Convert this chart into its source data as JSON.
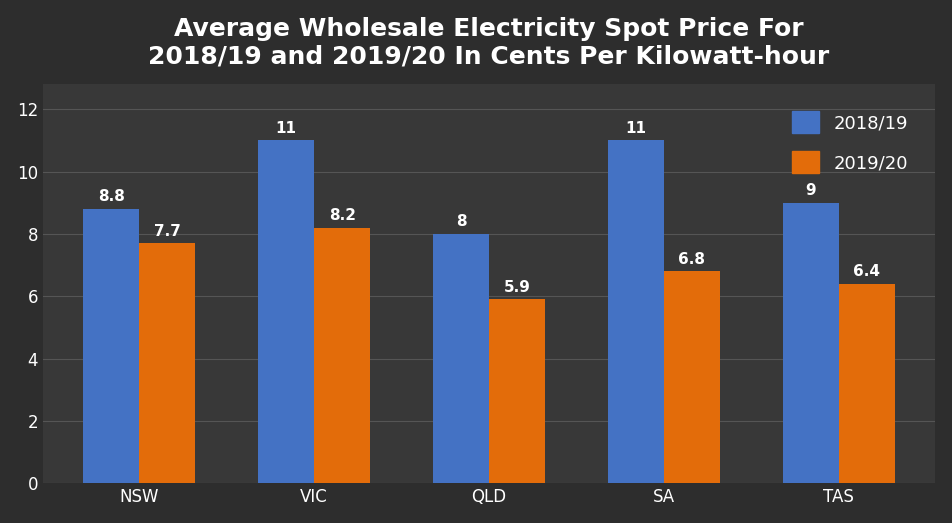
{
  "title": "Average Wholesale Electricity Spot Price For\n2018/19 and 2019/20 In Cents Per Kilowatt-hour",
  "categories": [
    "NSW",
    "VIC",
    "QLD",
    "SA",
    "TAS"
  ],
  "values_2018": [
    8.8,
    11,
    8,
    11,
    9
  ],
  "values_2019": [
    7.7,
    8.2,
    5.9,
    6.8,
    6.4
  ],
  "color_2018": "#4472C4",
  "color_2019": "#E36C0A",
  "legend_2018": "2018/19",
  "legend_2019": "2019/20",
  "ylim": [
    0,
    12.8
  ],
  "yticks": [
    0,
    2,
    4,
    6,
    8,
    10,
    12
  ],
  "background_color": "#2d2d2d",
  "plot_bg_color": "#383838",
  "grid_color": "#555555",
  "text_color": "#FFFFFF",
  "bar_width": 0.32,
  "title_fontsize": 18,
  "tick_fontsize": 12,
  "legend_fontsize": 13,
  "value_fontsize": 11
}
